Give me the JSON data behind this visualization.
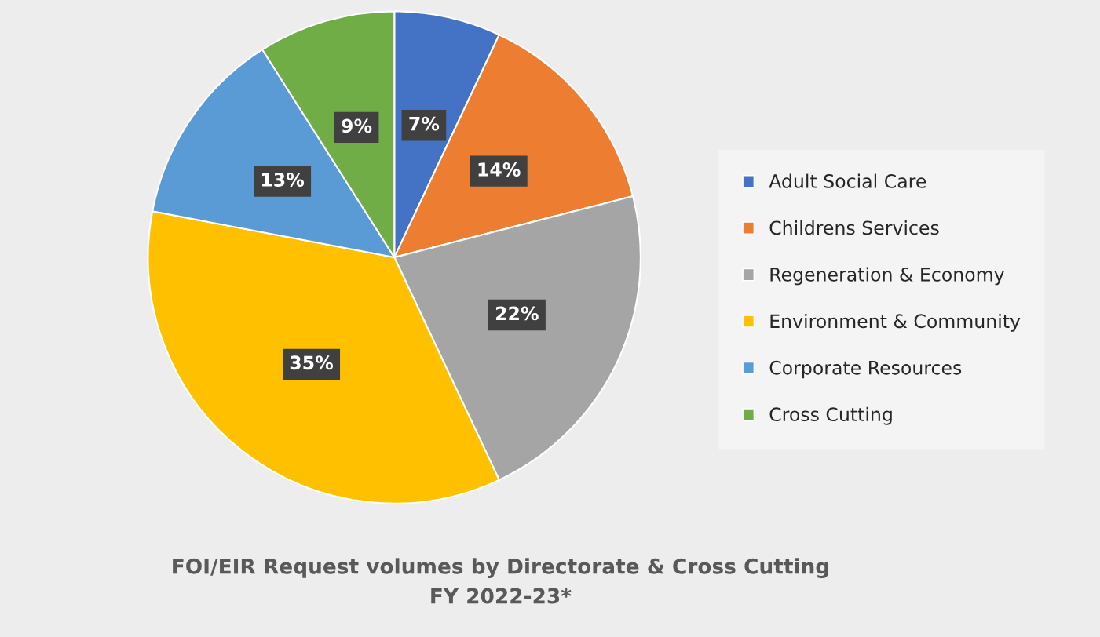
{
  "chart_data": {
    "type": "pie",
    "title": "FOI/EIR Request volumes by Directorate & Cross Cutting\nFY 2022-23*",
    "categories": [
      "Adult Social Care",
      "Childrens Services",
      "Regeneration & Economy",
      "Environment & Community",
      "Corporate Resources",
      "Cross Cutting"
    ],
    "values": [
      7,
      14,
      22,
      35,
      13,
      9
    ],
    "colors": [
      "#4472c4",
      "#ed7d31",
      "#a5a5a5",
      "#ffc000",
      "#5b9bd5",
      "#70ad47"
    ],
    "value_labels": [
      "7%",
      "14%",
      "22%",
      "35%",
      "13%",
      "9%"
    ],
    "legend": "right"
  }
}
